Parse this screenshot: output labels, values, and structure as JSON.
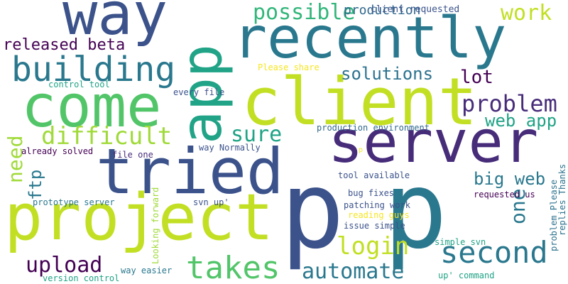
{
  "words": [
    {
      "text": "p",
      "color": "#3b528b"
    },
    {
      "text": "p",
      "color": "#2a788e"
    },
    {
      "text": "server",
      "color": "#472c7a"
    },
    {
      "text": "project",
      "color": "#c2df23"
    },
    {
      "text": "client",
      "color": "#c2df23"
    },
    {
      "text": "recently",
      "color": "#2a788e"
    },
    {
      "text": "tried",
      "color": "#3b528b"
    },
    {
      "text": "come",
      "color": "#52c569"
    },
    {
      "text": "way",
      "color": "#3b528b"
    },
    {
      "text": "app",
      "color": "#20a386"
    },
    {
      "text": "takes",
      "color": "#52c569"
    },
    {
      "text": "second",
      "color": "#2a788e"
    },
    {
      "text": "building",
      "color": "#2a788e"
    },
    {
      "text": "automate",
      "color": "#2a788e"
    },
    {
      "text": "login",
      "color": "#c2df23"
    },
    {
      "text": "upload",
      "color": "#440154"
    },
    {
      "text": "difficult",
      "color": "#a0da39"
    },
    {
      "text": "problem",
      "color": "#472c7a"
    },
    {
      "text": "possible",
      "color": "#32b67a"
    },
    {
      "text": "solutions",
      "color": "#2c728e"
    },
    {
      "text": "one",
      "color": "#2a788e"
    },
    {
      "text": "work",
      "color": "#c2df23"
    },
    {
      "text": "sure",
      "color": "#20a386"
    },
    {
      "text": "need",
      "color": "#a0da39"
    },
    {
      "text": "released beta",
      "color": "#440154"
    },
    {
      "text": "lot",
      "color": "#440154"
    },
    {
      "text": "web app",
      "color": "#20a386"
    },
    {
      "text": "big web",
      "color": "#2a788e"
    },
    {
      "text": "ftp",
      "color": "#2a788e"
    },
    {
      "text": "production",
      "color": "#31688e"
    },
    {
      "text": "client requested",
      "color": "#3b528b"
    },
    {
      "text": "Please share",
      "color": "#f6e620"
    },
    {
      "text": "control tool",
      "color": "#20a386"
    },
    {
      "text": "every file",
      "color": "#3b528b"
    },
    {
      "text": "production environment",
      "color": "#31688e"
    },
    {
      "text": "way Normally",
      "color": "#3b528b"
    },
    {
      "text": "already solved",
      "color": "#440154"
    },
    {
      "text": "file one",
      "color": "#472c7a"
    },
    {
      "text": "tool available",
      "color": "#3b528b"
    },
    {
      "text": "requested us",
      "color": "#440154"
    },
    {
      "text": "bug fixes",
      "color": "#3b528b"
    },
    {
      "text": "prototype server",
      "color": "#2a788e"
    },
    {
      "text": "svn up'",
      "color": "#3b528b"
    },
    {
      "text": "patching work",
      "color": "#3b528b"
    },
    {
      "text": "reading guys",
      "color": "#f6e620"
    },
    {
      "text": "issue simple",
      "color": "#3b528b"
    },
    {
      "text": "Looking forward",
      "color": "#a0da39"
    },
    {
      "text": "simple svn",
      "color": "#20a386"
    },
    {
      "text": "way easier",
      "color": "#2a788e"
    },
    {
      "text": "up' command",
      "color": "#20a386"
    },
    {
      "text": "version control",
      "color": "#20a386"
    },
    {
      "text": "problem Please",
      "color": "#2c728e"
    },
    {
      "text": "replies Thanks",
      "color": "#2c728e"
    },
    {
      "text": "p",
      "color": "#f6e620"
    }
  ]
}
